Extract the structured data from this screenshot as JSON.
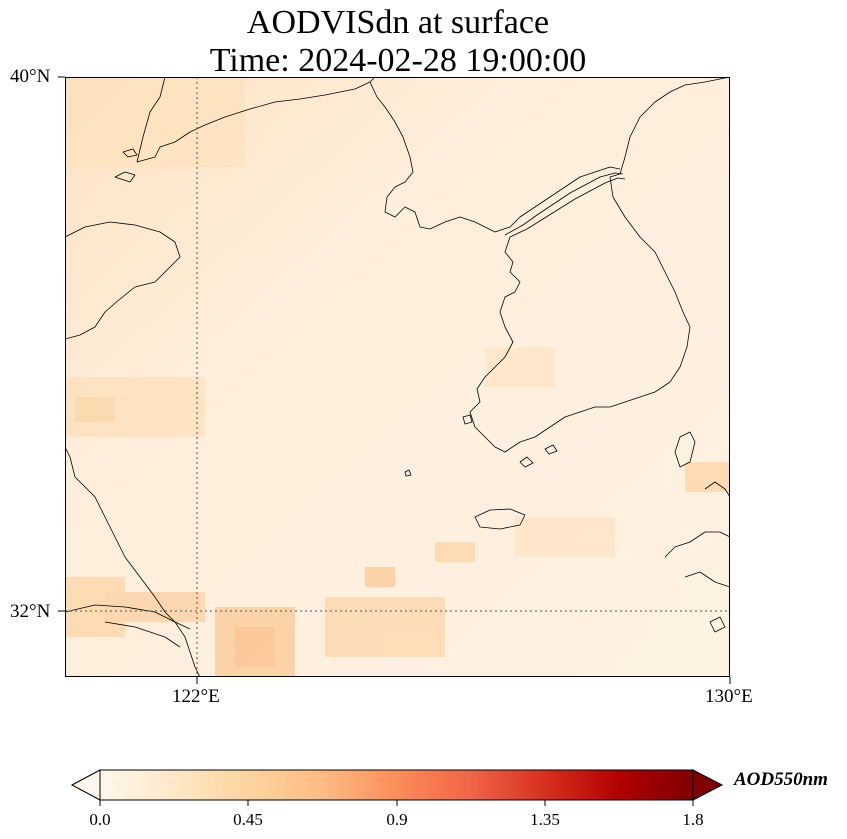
{
  "title": {
    "line1": "AODVISdn at surface",
    "line2": "Time: 2024-02-28 19:00:00"
  },
  "map": {
    "lat_labels": [
      "40°N",
      "32°N"
    ],
    "lon_labels": [
      "122°E",
      "130°E"
    ],
    "lat_range": [
      31,
      40
    ],
    "lon_range": [
      120,
      130
    ],
    "gridlines": {
      "lat": [
        32
      ],
      "lon": [
        122
      ],
      "style": "dotted"
    },
    "projection": "PlateCarree",
    "features": [
      "coastline"
    ]
  },
  "colorbar": {
    "label": "AOD550nm",
    "ticks": [
      "0.0",
      "0.45",
      "0.9",
      "1.35",
      "1.8"
    ],
    "range": [
      0.0,
      1.8
    ],
    "extend": "both",
    "colormap": "OrRd",
    "colors": [
      "#fff7ec",
      "#fee8c8",
      "#fdd49e",
      "#fdbb84",
      "#fc8d59",
      "#ef6548",
      "#d7301f",
      "#b30000",
      "#7f0000"
    ]
  },
  "field": {
    "variable": "AODVISdn",
    "level": "surface",
    "typical_range": [
      0.05,
      0.45
    ],
    "max_region": "southwest corner near 121-122°E, 31°N"
  }
}
